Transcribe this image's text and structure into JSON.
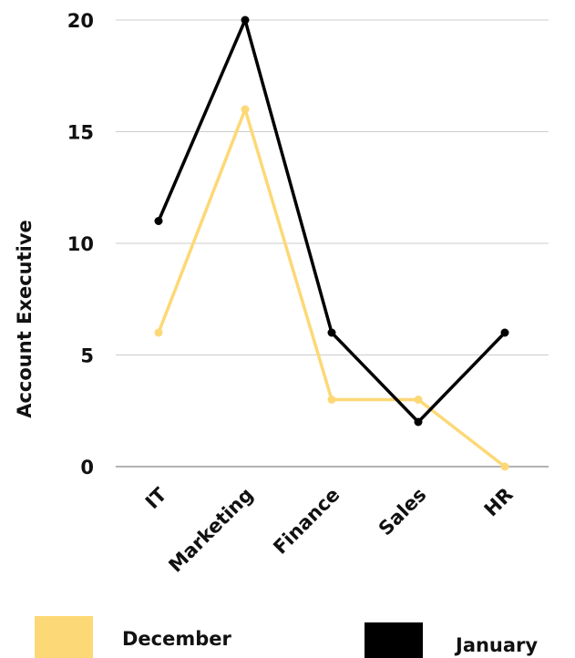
{
  "chart_data": {
    "type": "line",
    "title": "",
    "xlabel": "",
    "ylabel": "Account Executive",
    "categories": [
      "IT",
      "Marketing",
      "Finance",
      "Sales",
      "HR"
    ],
    "ylim": [
      0,
      20
    ],
    "yticks": [
      0,
      5,
      10,
      15,
      20
    ],
    "grid": true,
    "legend_position": "bottom",
    "series": [
      {
        "name": "December",
        "color": "#FDD876",
        "values": [
          6,
          16,
          3,
          3,
          0
        ]
      },
      {
        "name": "January",
        "color": "#000000",
        "values": [
          11,
          20,
          6,
          2,
          6
        ]
      }
    ]
  }
}
